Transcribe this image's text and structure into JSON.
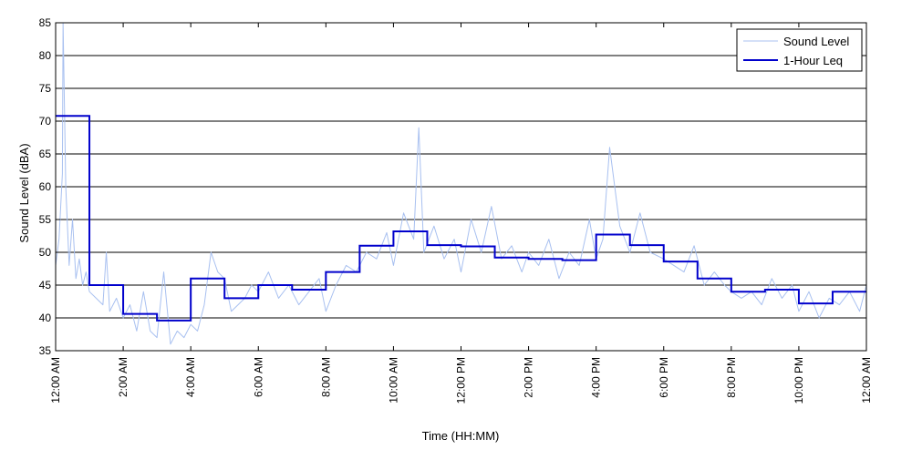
{
  "chart_data": {
    "type": "line",
    "title": "",
    "xlabel": "Time (HH:MM)",
    "ylabel": "Sound Level (dBA)",
    "xlim": [
      0,
      24
    ],
    "ylim": [
      35,
      85
    ],
    "grid": "horizontal",
    "legend_position": "top-right",
    "x_ticks": [
      {
        "value": 0,
        "label": "12:00 AM"
      },
      {
        "value": 2,
        "label": "2:00 AM"
      },
      {
        "value": 4,
        "label": "4:00 AM"
      },
      {
        "value": 6,
        "label": "6:00 AM"
      },
      {
        "value": 8,
        "label": "8:00 AM"
      },
      {
        "value": 10,
        "label": "10:00 AM"
      },
      {
        "value": 12,
        "label": "12:00 PM"
      },
      {
        "value": 14,
        "label": "2:00 PM"
      },
      {
        "value": 16,
        "label": "4:00 PM"
      },
      {
        "value": 18,
        "label": "6:00 PM"
      },
      {
        "value": 20,
        "label": "8:00 PM"
      },
      {
        "value": 22,
        "label": "10:00 PM"
      },
      {
        "value": 24,
        "label": "12:00 AM"
      }
    ],
    "y_ticks": [
      35,
      40,
      45,
      50,
      55,
      60,
      65,
      70,
      75,
      80,
      85
    ],
    "series": [
      {
        "name": "Sound Level",
        "color": "#a8c0f0",
        "style": "thin",
        "x": [
          0,
          0.1,
          0.2,
          0.22,
          0.3,
          0.4,
          0.5,
          0.6,
          0.7,
          0.8,
          0.9,
          1.0,
          1.2,
          1.4,
          1.5,
          1.6,
          1.8,
          2.0,
          2.2,
          2.4,
          2.6,
          2.8,
          3.0,
          3.2,
          3.4,
          3.6,
          3.8,
          4.0,
          4.2,
          4.4,
          4.6,
          4.8,
          5.0,
          5.2,
          5.4,
          5.6,
          5.8,
          6.0,
          6.3,
          6.6,
          6.9,
          7.2,
          7.5,
          7.8,
          8.0,
          8.3,
          8.6,
          8.9,
          9.2,
          9.5,
          9.8,
          10.0,
          10.3,
          10.6,
          10.75,
          10.9,
          11.2,
          11.5,
          11.8,
          12.0,
          12.3,
          12.6,
          12.9,
          13.2,
          13.5,
          13.8,
          14.0,
          14.3,
          14.6,
          14.9,
          15.2,
          15.5,
          15.8,
          16.0,
          16.2,
          16.4,
          16.7,
          17.0,
          17.3,
          17.6,
          18.0,
          18.3,
          18.6,
          18.9,
          19.2,
          19.5,
          19.8,
          20.0,
          20.3,
          20.6,
          20.9,
          21.2,
          21.5,
          21.8,
          22.0,
          22.3,
          22.6,
          22.9,
          23.2,
          23.5,
          23.8,
          24.0
        ],
        "y": [
          48,
          52,
          62,
          85,
          60,
          48,
          55,
          46,
          49,
          45,
          47,
          44,
          43,
          42,
          50,
          41,
          43,
          40,
          42,
          38,
          44,
          38,
          37,
          47,
          36,
          38,
          37,
          39,
          38,
          42,
          50,
          47,
          46,
          41,
          42,
          43,
          45,
          44,
          47,
          43,
          45,
          42,
          44,
          46,
          41,
          45,
          48,
          47,
          50,
          49,
          53,
          48,
          56,
          52,
          69,
          50,
          54,
          49,
          52,
          47,
          55,
          50,
          57,
          49,
          51,
          47,
          50,
          48,
          52,
          46,
          50,
          48,
          55,
          49,
          52,
          66,
          54,
          50,
          56,
          50,
          49,
          48,
          47,
          51,
          45,
          47,
          45,
          44,
          43,
          44,
          42,
          46,
          43,
          45,
          41,
          44,
          40,
          43,
          42,
          44,
          41,
          45
        ]
      },
      {
        "name": "1-Hour Leq",
        "color": "#0000cc",
        "style": "step",
        "x": [
          0,
          1,
          2,
          3,
          4,
          5,
          6,
          7,
          8,
          9,
          10,
          11,
          12,
          13,
          14,
          15,
          16,
          17,
          18,
          19,
          20,
          21,
          22,
          23,
          24
        ],
        "y": [
          70.8,
          45.0,
          40.6,
          39.6,
          46.0,
          43.0,
          45.0,
          44.3,
          47.0,
          51.0,
          53.2,
          51.1,
          50.9,
          49.2,
          49.0,
          48.8,
          52.7,
          51.1,
          48.6,
          46.0,
          44.0,
          44.3,
          42.2,
          44.0,
          44.0
        ]
      }
    ]
  }
}
